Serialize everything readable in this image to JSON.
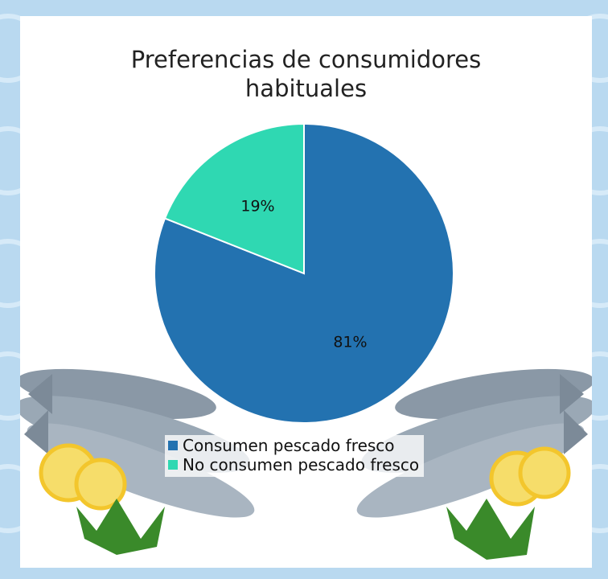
{
  "chart_data": {
    "type": "pie",
    "title": "Preferencias de consumidores habituales",
    "title_lines": [
      "Preferencias de consumidores",
      "habituales"
    ],
    "slices": [
      {
        "label": "Consumen pescado fresco",
        "value": 81,
        "display": "81%",
        "color": "#2372b0"
      },
      {
        "label": "No consumen pescado fresco",
        "value": 19,
        "display": "19%",
        "color": "#2fd8b2"
      }
    ],
    "legend_position": "bottom"
  },
  "decorations": {
    "image_subject": "fresh-fish-with-lemons",
    "background_color": "#b9d9f0"
  }
}
